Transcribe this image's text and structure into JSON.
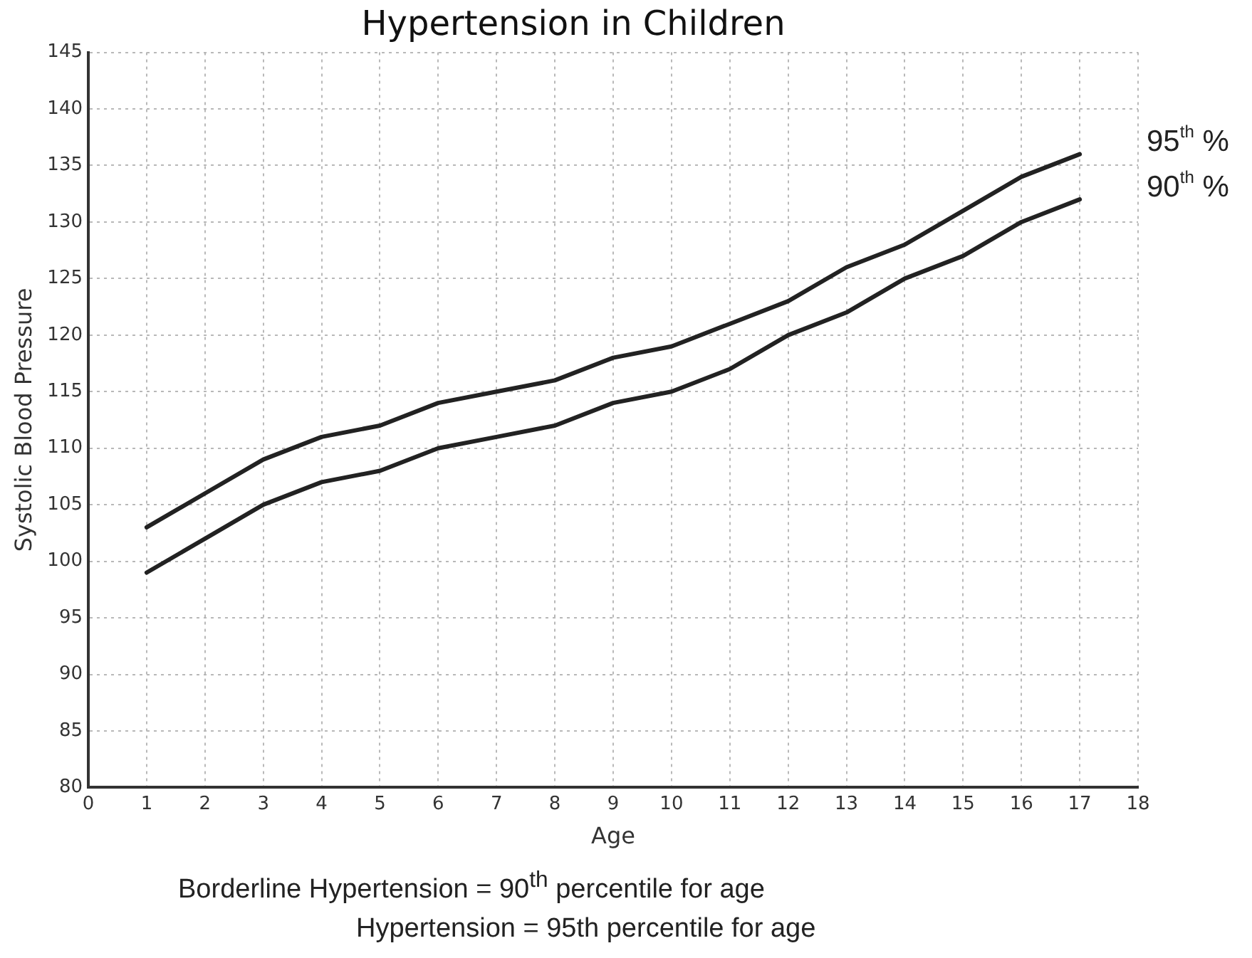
{
  "chart_data": {
    "type": "line",
    "title": "Hypertension in Children",
    "xlabel": "Age",
    "ylabel": "Systolic Blood Pressure",
    "x": [
      1,
      2,
      3,
      4,
      5,
      6,
      7,
      8,
      9,
      10,
      11,
      12,
      13,
      14,
      15,
      16,
      17
    ],
    "series": [
      {
        "name": "95$^{th}$ %",
        "color": "#222222",
        "values": [
          103,
          106,
          109,
          111,
          112,
          114,
          115,
          116,
          118,
          119,
          121,
          123,
          126,
          128,
          131,
          134,
          136
        ]
      },
      {
        "name": "90$^{th}$ %",
        "color": "#222222",
        "values": [
          99,
          102,
          105,
          107,
          108,
          110,
          111,
          112,
          114,
          115,
          117,
          120,
          122,
          125,
          127,
          130,
          132
        ]
      }
    ],
    "xlim": [
      0,
      18
    ],
    "xticks": [
      0,
      1,
      2,
      3,
      4,
      5,
      6,
      7,
      8,
      9,
      10,
      11,
      12,
      13,
      14,
      15,
      16,
      17,
      18
    ],
    "ylim": [
      80,
      145
    ],
    "yticks": [
      80,
      85,
      90,
      95,
      100,
      105,
      110,
      115,
      120,
      125,
      130,
      135,
      140,
      145
    ],
    "grid": true,
    "legend": false,
    "marker": "none",
    "line_style": "solid",
    "annotations": [
      "Borderline Hypertension = 90$^{th}$ percentile for age",
      "Hypertension = 95th percentile for age"
    ]
  }
}
